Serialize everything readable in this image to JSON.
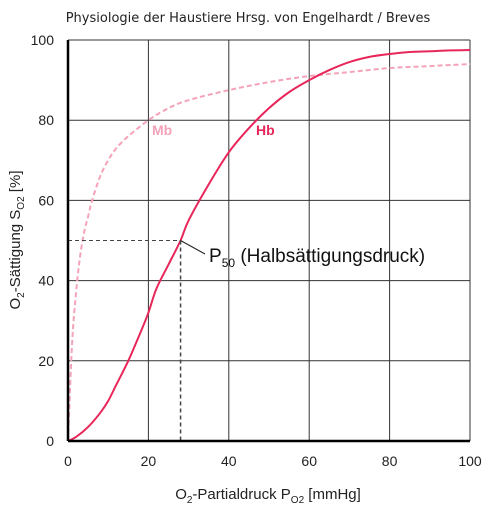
{
  "page": {
    "header": "Physiologie der Haustiere Hrsg. von Engelhardt / Breves"
  },
  "chart_data": {
    "type": "line",
    "xlabel": {
      "main": "O",
      "sub1": "2",
      "mid": "-Partialdruck P",
      "sub2": "O2",
      "unit": " [mmHg]"
    },
    "ylabel": {
      "main": "O",
      "sub1": "2",
      "mid": "-Sättigung S",
      "sub2": "O2",
      "unit": " [%]"
    },
    "xlim": [
      0,
      100
    ],
    "ylim": [
      0,
      100
    ],
    "xticks": [
      0,
      20,
      40,
      60,
      80,
      100
    ],
    "yticks": [
      0,
      20,
      40,
      60,
      80,
      100
    ],
    "grid": true,
    "series": [
      {
        "name": "Mb",
        "color": "#f4a3b8",
        "style": "dashed",
        "x": [
          0,
          1,
          2,
          3,
          4,
          5,
          6,
          8,
          10,
          12,
          15,
          20,
          25,
          30,
          40,
          50,
          60,
          70,
          80,
          90,
          100
        ],
        "y": [
          0,
          24,
          37,
          46,
          52,
          56,
          60,
          66,
          70,
          73,
          76,
          80,
          83,
          85,
          87.5,
          89.5,
          91,
          92,
          93,
          93.5,
          94
        ]
      },
      {
        "name": "Hb",
        "color": "#e8265a",
        "style": "solid",
        "x": [
          0,
          2,
          5,
          8,
          10,
          12,
          15,
          18,
          20,
          22,
          25,
          28,
          30,
          35,
          40,
          45,
          50,
          55,
          60,
          65,
          70,
          75,
          80,
          85,
          90,
          95,
          100
        ],
        "y": [
          0,
          1,
          3.5,
          7,
          10,
          14,
          20,
          27,
          32,
          38,
          44,
          50,
          55,
          64,
          72,
          78,
          83,
          87,
          90,
          92.5,
          94.5,
          95.8,
          96.5,
          97,
          97.2,
          97.4,
          97.5
        ]
      }
    ],
    "reference": {
      "x": 28,
      "y": 50
    },
    "annotation": {
      "p": "P",
      "sub": "50",
      "text": " (Halbsättigungsdruck)"
    }
  }
}
